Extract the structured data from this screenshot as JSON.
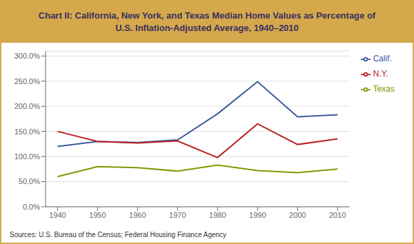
{
  "chart_data": {
    "type": "line",
    "title": "Chart II: California, New York, and Texas Median Home Values as Percentage of",
    "subtitle": "U.S. Inflation-Adjusted Average, 1940–2010",
    "annotations": [
      "Sources: U.S. Bureau of the Census; Federal Housing Finance Agency"
    ],
    "x": [
      1940,
      1950,
      1960,
      1970,
      1980,
      1990,
      2000,
      2010
    ],
    "xlim": [
      1937,
      2013
    ],
    "xticks": [
      1940,
      1950,
      1960,
      1970,
      1980,
      1990,
      2000,
      2010
    ],
    "ylim": [
      0,
      310
    ],
    "yticks": [
      {
        "value": 0,
        "label": "0.0%"
      },
      {
        "value": 50,
        "label": "50.0%"
      },
      {
        "value": 100,
        "label": "100.0%"
      },
      {
        "value": 150,
        "label": "150.0%"
      },
      {
        "value": 200,
        "label": "200.0%"
      },
      {
        "value": 250,
        "label": "250.0%"
      },
      {
        "value": 300,
        "label": "300.0%"
      }
    ],
    "grid": true,
    "legend": "right",
    "series": [
      {
        "name": "Calif.",
        "color": "#3b5aa0",
        "values": [
          120,
          130,
          128,
          133,
          185,
          249,
          179,
          183
        ]
      },
      {
        "name": "N.Y.",
        "color": "#bb2020",
        "values": [
          150,
          130,
          127,
          131,
          98,
          165,
          124,
          135
        ]
      },
      {
        "name": "Texas",
        "color": "#7a9a00",
        "values": [
          60,
          80,
          78,
          71,
          83,
          72,
          68,
          75
        ]
      }
    ]
  }
}
